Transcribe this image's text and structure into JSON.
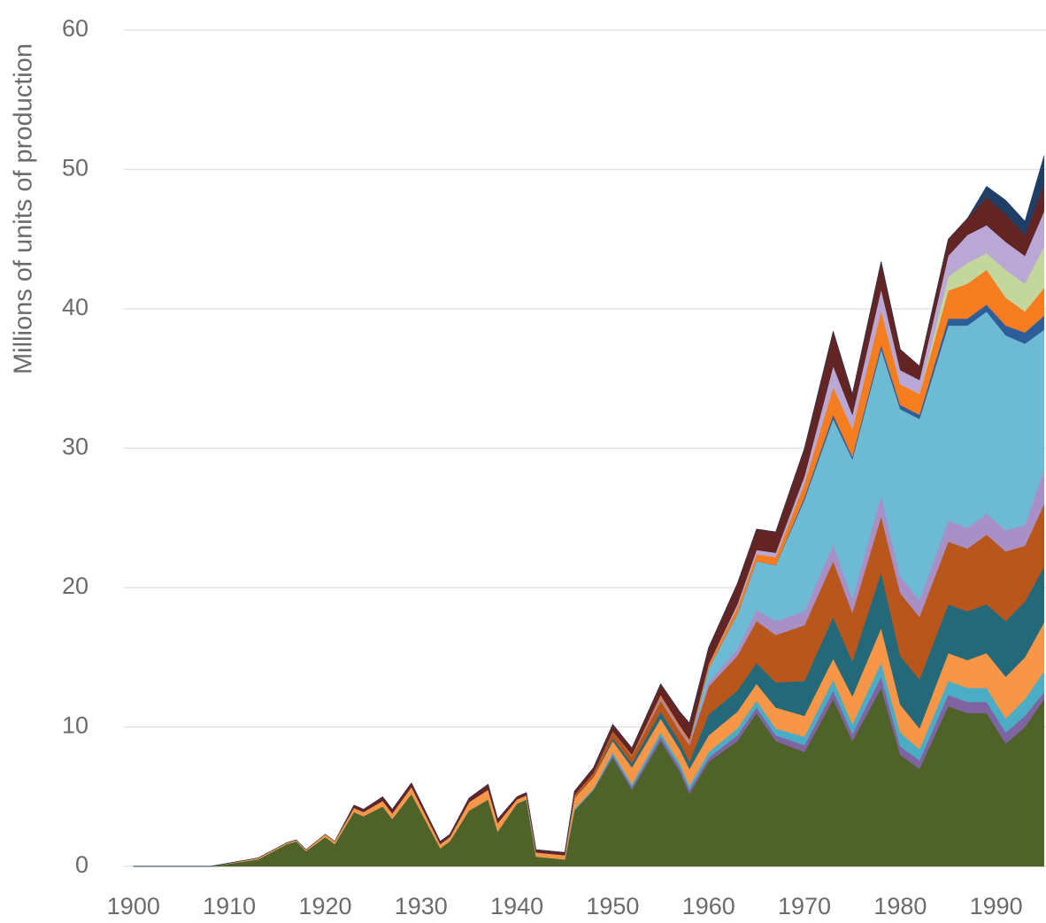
{
  "chart_data": {
    "type": "stacked_area",
    "y_label": "Millions of units of production",
    "x": [
      1900,
      1908,
      1913,
      1916,
      1917,
      1918,
      1920,
      1921,
      1923,
      1924,
      1926,
      1927,
      1929,
      1932,
      1933,
      1935,
      1937,
      1938,
      1940,
      1941,
      1942,
      1945,
      1946,
      1948,
      1950,
      1952,
      1955,
      1957,
      1958,
      1960,
      1963,
      1965,
      1967,
      1970,
      1973,
      1975,
      1978,
      1980,
      1982,
      1985,
      1987,
      1989,
      1991,
      1993,
      1995
    ],
    "xlim": [
      1899,
      1995.2
    ],
    "xticks": [
      1900,
      1910,
      1920,
      1930,
      1940,
      1950,
      1960,
      1970,
      1980,
      1990
    ],
    "ylim": [
      0,
      60
    ],
    "yticks": [
      0,
      10,
      20,
      30,
      40,
      50,
      60
    ],
    "grid": true,
    "series": [
      {
        "color": "#4f6228",
        "values": [
          0,
          0,
          0.5,
          1.6,
          1.8,
          1.1,
          2.1,
          1.6,
          3.9,
          3.6,
          4.3,
          3.4,
          5.2,
          1.3,
          1.8,
          4,
          4.8,
          2.5,
          4.5,
          4.8,
          0.7,
          0.5,
          4,
          5.5,
          7.8,
          5.5,
          9,
          6.8,
          5.2,
          7.5,
          9,
          11,
          9,
          8.2,
          12,
          9,
          12.8,
          8,
          7,
          11.5,
          11,
          11,
          8.8,
          10,
          12
        ]
      },
      {
        "color": "#8064a2",
        "values": [
          0,
          0,
          0,
          0,
          0,
          0,
          0,
          0,
          0,
          0,
          0,
          0,
          0,
          0,
          0,
          0,
          0,
          0,
          0,
          0,
          0,
          0,
          0,
          0,
          0.2,
          0.2,
          0.3,
          0.3,
          0.3,
          0.3,
          0.4,
          0.4,
          0.4,
          0.5,
          0.6,
          0.5,
          0.8,
          0.6,
          0.6,
          0.8,
          0.8,
          0.8,
          0.8,
          0.8,
          0.5
        ]
      },
      {
        "color": "#4bacc6",
        "values": [
          0,
          0,
          0,
          0,
          0,
          0,
          0,
          0,
          0,
          0,
          0,
          0,
          0,
          0,
          0,
          0,
          0,
          0,
          0,
          0,
          0,
          0,
          0.1,
          0.1,
          0.2,
          0.2,
          0.3,
          0.3,
          0.3,
          0.4,
          0.5,
          0.5,
          0.5,
          0.6,
          0.8,
          0.7,
          1,
          1,
          0.8,
          1,
          1,
          1,
          1,
          1.2,
          1.5
        ]
      },
      {
        "color": "#f79646",
        "values": [
          0,
          0,
          0.1,
          0.1,
          0.1,
          0.1,
          0.2,
          0.2,
          0.3,
          0.3,
          0.4,
          0.4,
          0.5,
          0.3,
          0.3,
          0.6,
          0.7,
          0.6,
          0.3,
          0.3,
          0.3,
          0.3,
          0.8,
          0.8,
          0.8,
          1.2,
          1,
          1,
          1.2,
          1.2,
          1.2,
          1.2,
          1.5,
          1.5,
          1.5,
          2,
          2.5,
          2,
          1.5,
          2,
          2,
          2.5,
          3,
          3,
          3.5
        ]
      },
      {
        "color": "#23697a",
        "values": [
          0,
          0,
          0,
          0,
          0,
          0,
          0,
          0,
          0,
          0,
          0,
          0,
          0,
          0,
          0,
          0,
          0,
          0,
          0,
          0,
          0,
          0,
          0,
          0,
          0.2,
          0.3,
          0.5,
          0.5,
          0.5,
          1.5,
          1.5,
          1.5,
          1.8,
          2.5,
          3,
          2.5,
          4,
          3.5,
          3.5,
          3.5,
          3.5,
          3.5,
          4,
          4,
          4
        ]
      },
      {
        "color": "#b9561b",
        "values": [
          0,
          0,
          0,
          0,
          0,
          0,
          0,
          0,
          0,
          0,
          0,
          0,
          0,
          0,
          0,
          0,
          0,
          0,
          0,
          0,
          0,
          0,
          0.2,
          0.3,
          0.5,
          0.5,
          0.8,
          0.8,
          1.2,
          2,
          2.5,
          3,
          3.4,
          4,
          4,
          3.5,
          4,
          4.5,
          4.5,
          4.5,
          4.5,
          5,
          5,
          4,
          4.5
        ]
      },
      {
        "color": "#a88fc6",
        "values": [
          0,
          0,
          0,
          0,
          0,
          0,
          0,
          0,
          0,
          0,
          0,
          0,
          0,
          0,
          0,
          0,
          0,
          0,
          0,
          0,
          0,
          0,
          0,
          0,
          0,
          0,
          0.2,
          0.2,
          0.2,
          0.3,
          0.5,
          0.8,
          1,
          1,
          1.2,
          1,
          1.5,
          1.2,
          1.2,
          1.5,
          1.5,
          1.5,
          1.5,
          1.5,
          2.5
        ]
      },
      {
        "color": "#6cbad3",
        "values": [
          0,
          0,
          0,
          0,
          0,
          0,
          0,
          0,
          0,
          0,
          0,
          0,
          0,
          0,
          0,
          0,
          0,
          0,
          0,
          0,
          0,
          0,
          0,
          0,
          0,
          0,
          0,
          0,
          0,
          1,
          2.5,
          3.5,
          4,
          8,
          9,
          10,
          10.5,
          12,
          13,
          14,
          14.5,
          14.5,
          14,
          13,
          10
        ]
      },
      {
        "color": "#2e5e9a",
        "values": [
          0,
          0,
          0,
          0,
          0,
          0,
          0,
          0,
          0,
          0,
          0,
          0,
          0,
          0,
          0,
          0,
          0,
          0,
          0,
          0,
          0,
          0,
          0,
          0,
          0,
          0,
          0,
          0,
          0,
          0,
          0,
          0,
          0,
          0.2,
          0.3,
          0.2,
          0.3,
          0.3,
          0.3,
          0.5,
          0.5,
          0.5,
          0.7,
          0.8,
          1
        ]
      },
      {
        "color": "#f57c1f",
        "values": [
          0,
          0,
          0,
          0,
          0,
          0,
          0,
          0,
          0,
          0,
          0,
          0,
          0,
          0,
          0,
          0,
          0,
          0,
          0,
          0,
          0,
          0,
          0,
          0,
          0,
          0.1,
          0.2,
          0.2,
          0.2,
          0.3,
          0.5,
          0.5,
          0.6,
          1,
          2,
          2,
          2.5,
          1.5,
          1.5,
          2,
          2.5,
          2.5,
          2,
          1.5,
          2
        ]
      },
      {
        "color": "#c3d69b",
        "values": [
          0,
          0,
          0,
          0,
          0,
          0,
          0,
          0,
          0,
          0,
          0,
          0,
          0,
          0,
          0,
          0,
          0,
          0,
          0,
          0,
          0,
          0,
          0,
          0,
          0,
          0,
          0,
          0,
          0,
          0,
          0,
          0,
          0,
          0,
          0,
          0,
          0,
          0,
          0,
          1,
          1.5,
          1.2,
          2,
          2,
          3
        ]
      },
      {
        "color": "#b9a7d6",
        "values": [
          0,
          0,
          0,
          0,
          0,
          0,
          0,
          0,
          0,
          0,
          0,
          0,
          0,
          0,
          0,
          0,
          0,
          0,
          0,
          0,
          0,
          0,
          0,
          0,
          0,
          0,
          0,
          0,
          0,
          0,
          0.2,
          0.3,
          0.3,
          0.5,
          1.5,
          1,
          1.5,
          1,
          1,
          1.5,
          2,
          2,
          2,
          2,
          2.5
        ]
      },
      {
        "color": "#632523",
        "values": [
          0,
          0,
          0,
          0,
          0,
          0,
          0,
          0,
          0.2,
          0.2,
          0.3,
          0.3,
          0.3,
          0.2,
          0.2,
          0.3,
          0.4,
          0.3,
          0.2,
          0.2,
          0.2,
          0.2,
          0.3,
          0.4,
          0.5,
          0.5,
          0.8,
          1,
          1.2,
          1.2,
          1.5,
          1.5,
          1.5,
          2,
          2.5,
          1.5,
          2,
          1.5,
          1,
          1.2,
          1.2,
          2,
          2,
          1.5,
          2
        ]
      },
      {
        "color": "#1f3f66",
        "values": [
          0,
          0,
          0,
          0,
          0,
          0,
          0,
          0,
          0,
          0,
          0,
          0,
          0,
          0,
          0,
          0,
          0,
          0,
          0,
          0,
          0,
          0,
          0,
          0,
          0,
          0,
          0,
          0,
          0,
          0,
          0,
          0,
          0,
          0,
          0,
          0,
          0,
          0,
          0,
          0,
          0,
          0.8,
          1,
          1,
          2
        ]
      }
    ]
  }
}
